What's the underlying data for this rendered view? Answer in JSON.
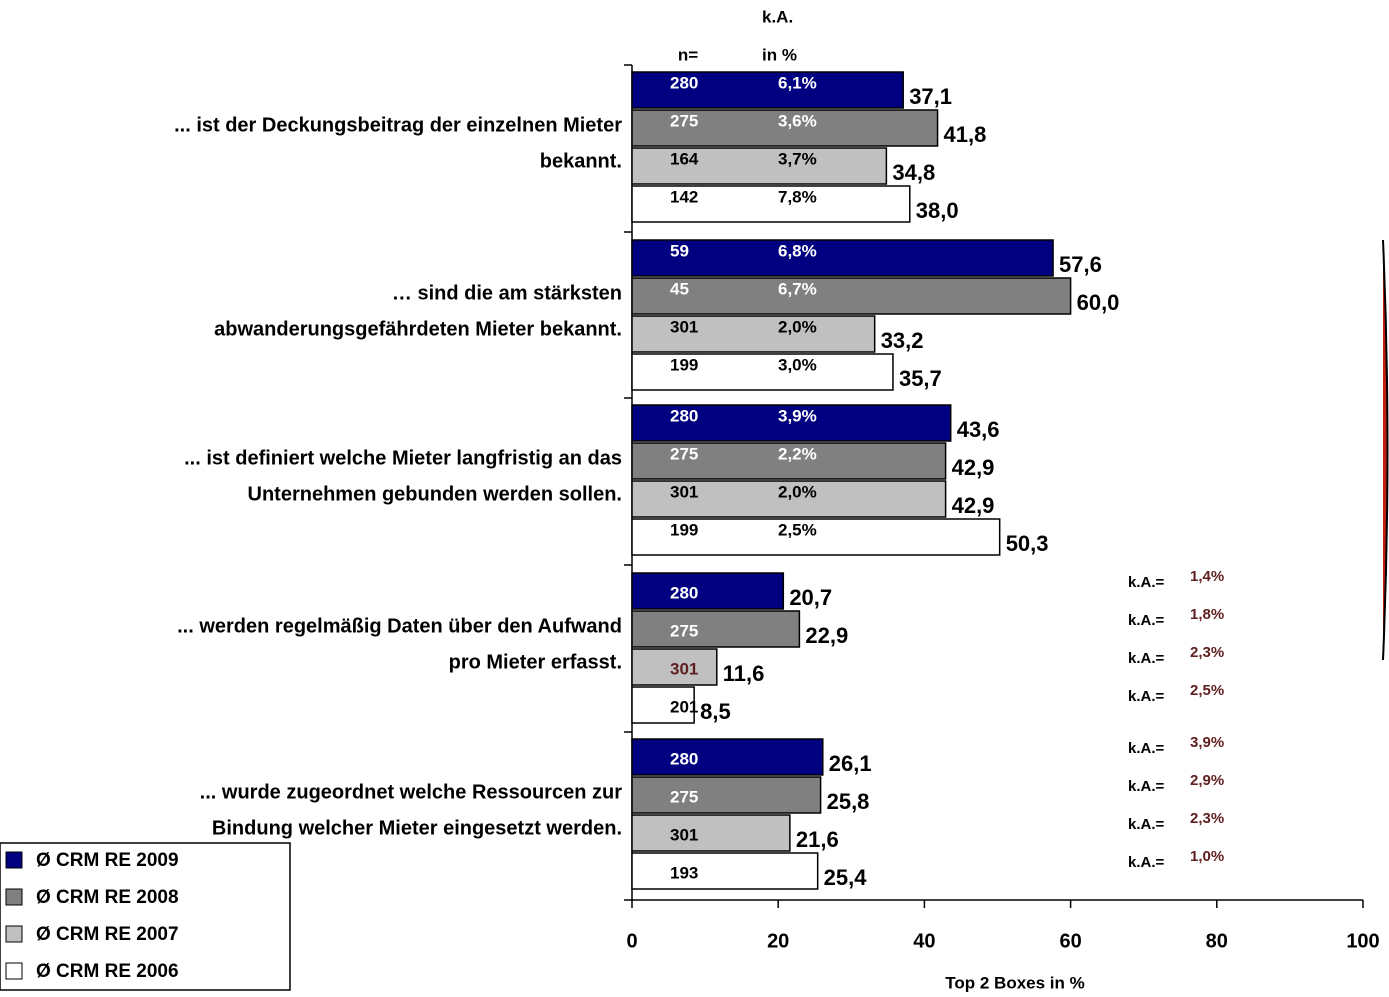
{
  "chart_data": {
    "type": "bar",
    "orientation": "horizontal",
    "categories": [
      [
        "... ist der Deckungsbeitrag der einzelnen Mieter",
        "bekannt."
      ],
      [
        "… sind die am stärksten",
        "abwanderungsgefährdeten Mieter bekannt."
      ],
      [
        "... ist definiert welche Mieter langfristig an das",
        "Unternehmen gebunden werden sollen."
      ],
      [
        "... werden regelmäßig Daten über den Aufwand",
        "pro Mieter erfasst."
      ],
      [
        "... wurde zugeordnet welche Ressourcen zur",
        "Bindung welcher Mieter eingesetzt werden."
      ]
    ],
    "series": [
      {
        "name": "Ø CRM RE 2009",
        "color": "#000080",
        "values": [
          37.1,
          57.6,
          43.6,
          20.7,
          26.1
        ],
        "value_labels": [
          "37,1",
          "57,6",
          "43,6",
          "20,7",
          "26,1"
        ],
        "n": [
          280,
          59,
          280,
          280,
          280
        ],
        "ka_labels": [
          "6,1%",
          "6,8%",
          "3,9%",
          "1,4%",
          "3,9%"
        ]
      },
      {
        "name": "Ø CRM RE 2008",
        "color": "#808080",
        "values": [
          41.8,
          60.0,
          42.9,
          22.9,
          25.8
        ],
        "value_labels": [
          "41,8",
          "60,0",
          "42,9",
          "22,9",
          "25,8"
        ],
        "n": [
          275,
          45,
          275,
          275,
          275
        ],
        "ka_labels": [
          "3,6%",
          "6,7%",
          "2,2%",
          "1,8%",
          "2,9%"
        ]
      },
      {
        "name": "Ø CRM RE 2007",
        "color": "#c0c0c0",
        "values": [
          34.8,
          33.2,
          42.9,
          11.6,
          21.6
        ],
        "value_labels": [
          "34,8",
          "33,2",
          "42,9",
          "11,6",
          "21,6"
        ],
        "n": [
          164,
          301,
          301,
          301,
          301
        ],
        "ka_labels": [
          "3,7%",
          "2,0%",
          "2,0%",
          "2,3%",
          "2,3%"
        ]
      },
      {
        "name": "Ø CRM RE 2006",
        "color": "#ffffff",
        "values": [
          38.0,
          35.7,
          50.3,
          8.5,
          25.4
        ],
        "value_labels": [
          "38,0",
          "35,7",
          "50,3",
          "8,5",
          "25,4"
        ],
        "n": [
          142,
          199,
          199,
          201,
          193
        ],
        "ka_labels": [
          "7,8%",
          "3,0%",
          "2,5%",
          "2,5%",
          "1,0%"
        ]
      }
    ],
    "n_header": "n=",
    "ka_header": [
      "k.A.",
      "in %"
    ],
    "ka_prefix": "k.A.=",
    "xlabel": "Top 2 Boxes in %",
    "xlim": [
      0,
      100
    ],
    "xticks": [
      0,
      20,
      40,
      60,
      80,
      100
    ],
    "legend": "bottom-left"
  }
}
